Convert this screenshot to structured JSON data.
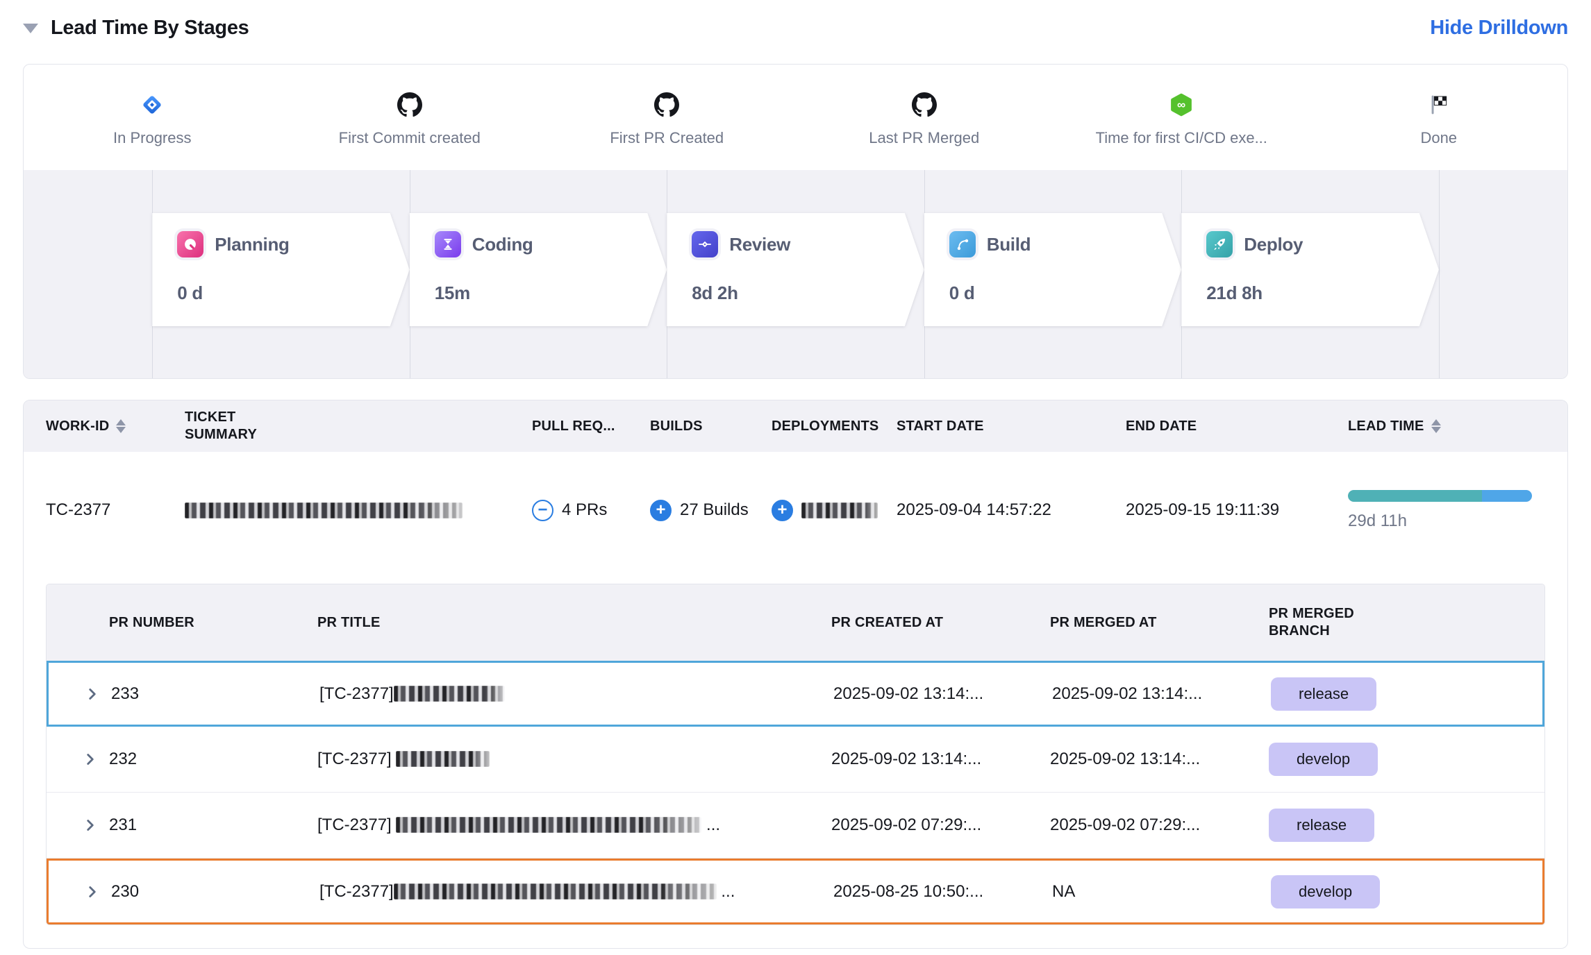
{
  "page": {
    "title": "Lead Time By Stages",
    "action_link": "Hide Drilldown"
  },
  "milestones": [
    {
      "label": "In Progress",
      "icon": "jira-in-progress-icon"
    },
    {
      "label": "First Commit created",
      "icon": "github-icon"
    },
    {
      "label": "First PR Created",
      "icon": "github-icon"
    },
    {
      "label": "Last PR Merged",
      "icon": "github-icon"
    },
    {
      "label": "Time for first CI/CD exe...",
      "icon": "cicd-infinity-icon"
    },
    {
      "label": "Done",
      "icon": "checkered-flag-icon"
    }
  ],
  "stages": [
    {
      "name": "Planning",
      "duration": "0 d",
      "icon": "planning-note-icon",
      "color": "#e8489a"
    },
    {
      "name": "Coding",
      "duration": "15m",
      "icon": "hourglass-icon",
      "color": "#8b5cf6"
    },
    {
      "name": "Review",
      "duration": "8d 2h",
      "icon": "git-commit-icon",
      "color": "#5355d9"
    },
    {
      "name": "Build",
      "duration": "0 d",
      "icon": "git-branch-icon",
      "color": "#4ba5e2"
    },
    {
      "name": "Deploy",
      "duration": "21d 8h",
      "icon": "rocket-icon",
      "color": "#43b5ba"
    }
  ],
  "work_items_table": {
    "columns": {
      "work_id": "WORK-ID",
      "ticket_summary": "TICKET SUMMARY",
      "pull_requests": "PULL REQ...",
      "builds": "BUILDS",
      "deployments": "DEPLOYMENTS",
      "start_date": "START DATE",
      "end_date": "END DATE",
      "lead_time": "LEAD TIME"
    },
    "sortable_columns": [
      "WORK-ID",
      "LEAD TIME"
    ],
    "row": {
      "work_id": "TC-2377",
      "ticket_summary_redacted": true,
      "pull_requests": "4 PRs",
      "builds": "27 Builds",
      "deployments_redacted": true,
      "start_date": "2025-09-04 14:57:22",
      "end_date": "2025-09-15 19:11:39",
      "lead_time": "29d 11h",
      "lead_time_bar": {
        "segments": [
          {
            "color": "#4fb1b6",
            "pct": 73
          },
          {
            "color": "#4fa6e8",
            "pct": 27
          }
        ]
      }
    }
  },
  "pr_table": {
    "columns": {
      "number": "PR NUMBER",
      "title": "PR TITLE",
      "created_at": "PR CREATED AT",
      "merged_at": "PR MERGED AT",
      "merged_branch": "PR MERGED BRANCH"
    },
    "rows": [
      {
        "number": "233",
        "title_prefix": "[TC-2377]",
        "title_redacted": true,
        "title_suffix": "",
        "created_at": "2025-09-02 13:14:...",
        "merged_at": "2025-09-02 13:14:...",
        "branch": "release",
        "highlight": "blue"
      },
      {
        "number": "232",
        "title_prefix": "[TC-2377] ",
        "title_redacted": true,
        "title_suffix": "",
        "created_at": "2025-09-02 13:14:...",
        "merged_at": "2025-09-02 13:14:...",
        "branch": "develop",
        "highlight": "none"
      },
      {
        "number": "231",
        "title_prefix": "[TC-2377] ",
        "title_redacted": true,
        "title_suffix": " ...",
        "created_at": "2025-09-02 07:29:...",
        "merged_at": "2025-09-02 07:29:...",
        "branch": "release",
        "highlight": "none"
      },
      {
        "number": "230",
        "title_prefix": "[TC-2377]",
        "title_redacted": true,
        "title_suffix": " ...",
        "created_at": "2025-08-25 10:50:...",
        "merged_at": "NA",
        "branch": "develop",
        "highlight": "orange"
      }
    ],
    "highlight_colors": {
      "blue": "#4fa6da",
      "orange": "#ea7c2e"
    },
    "badge_bg": "#c9c5f6"
  },
  "colors": {
    "link_blue": "#2e6ee2",
    "panel_bg": "#f1f1f6",
    "accent_blue": "#2a7de1"
  }
}
